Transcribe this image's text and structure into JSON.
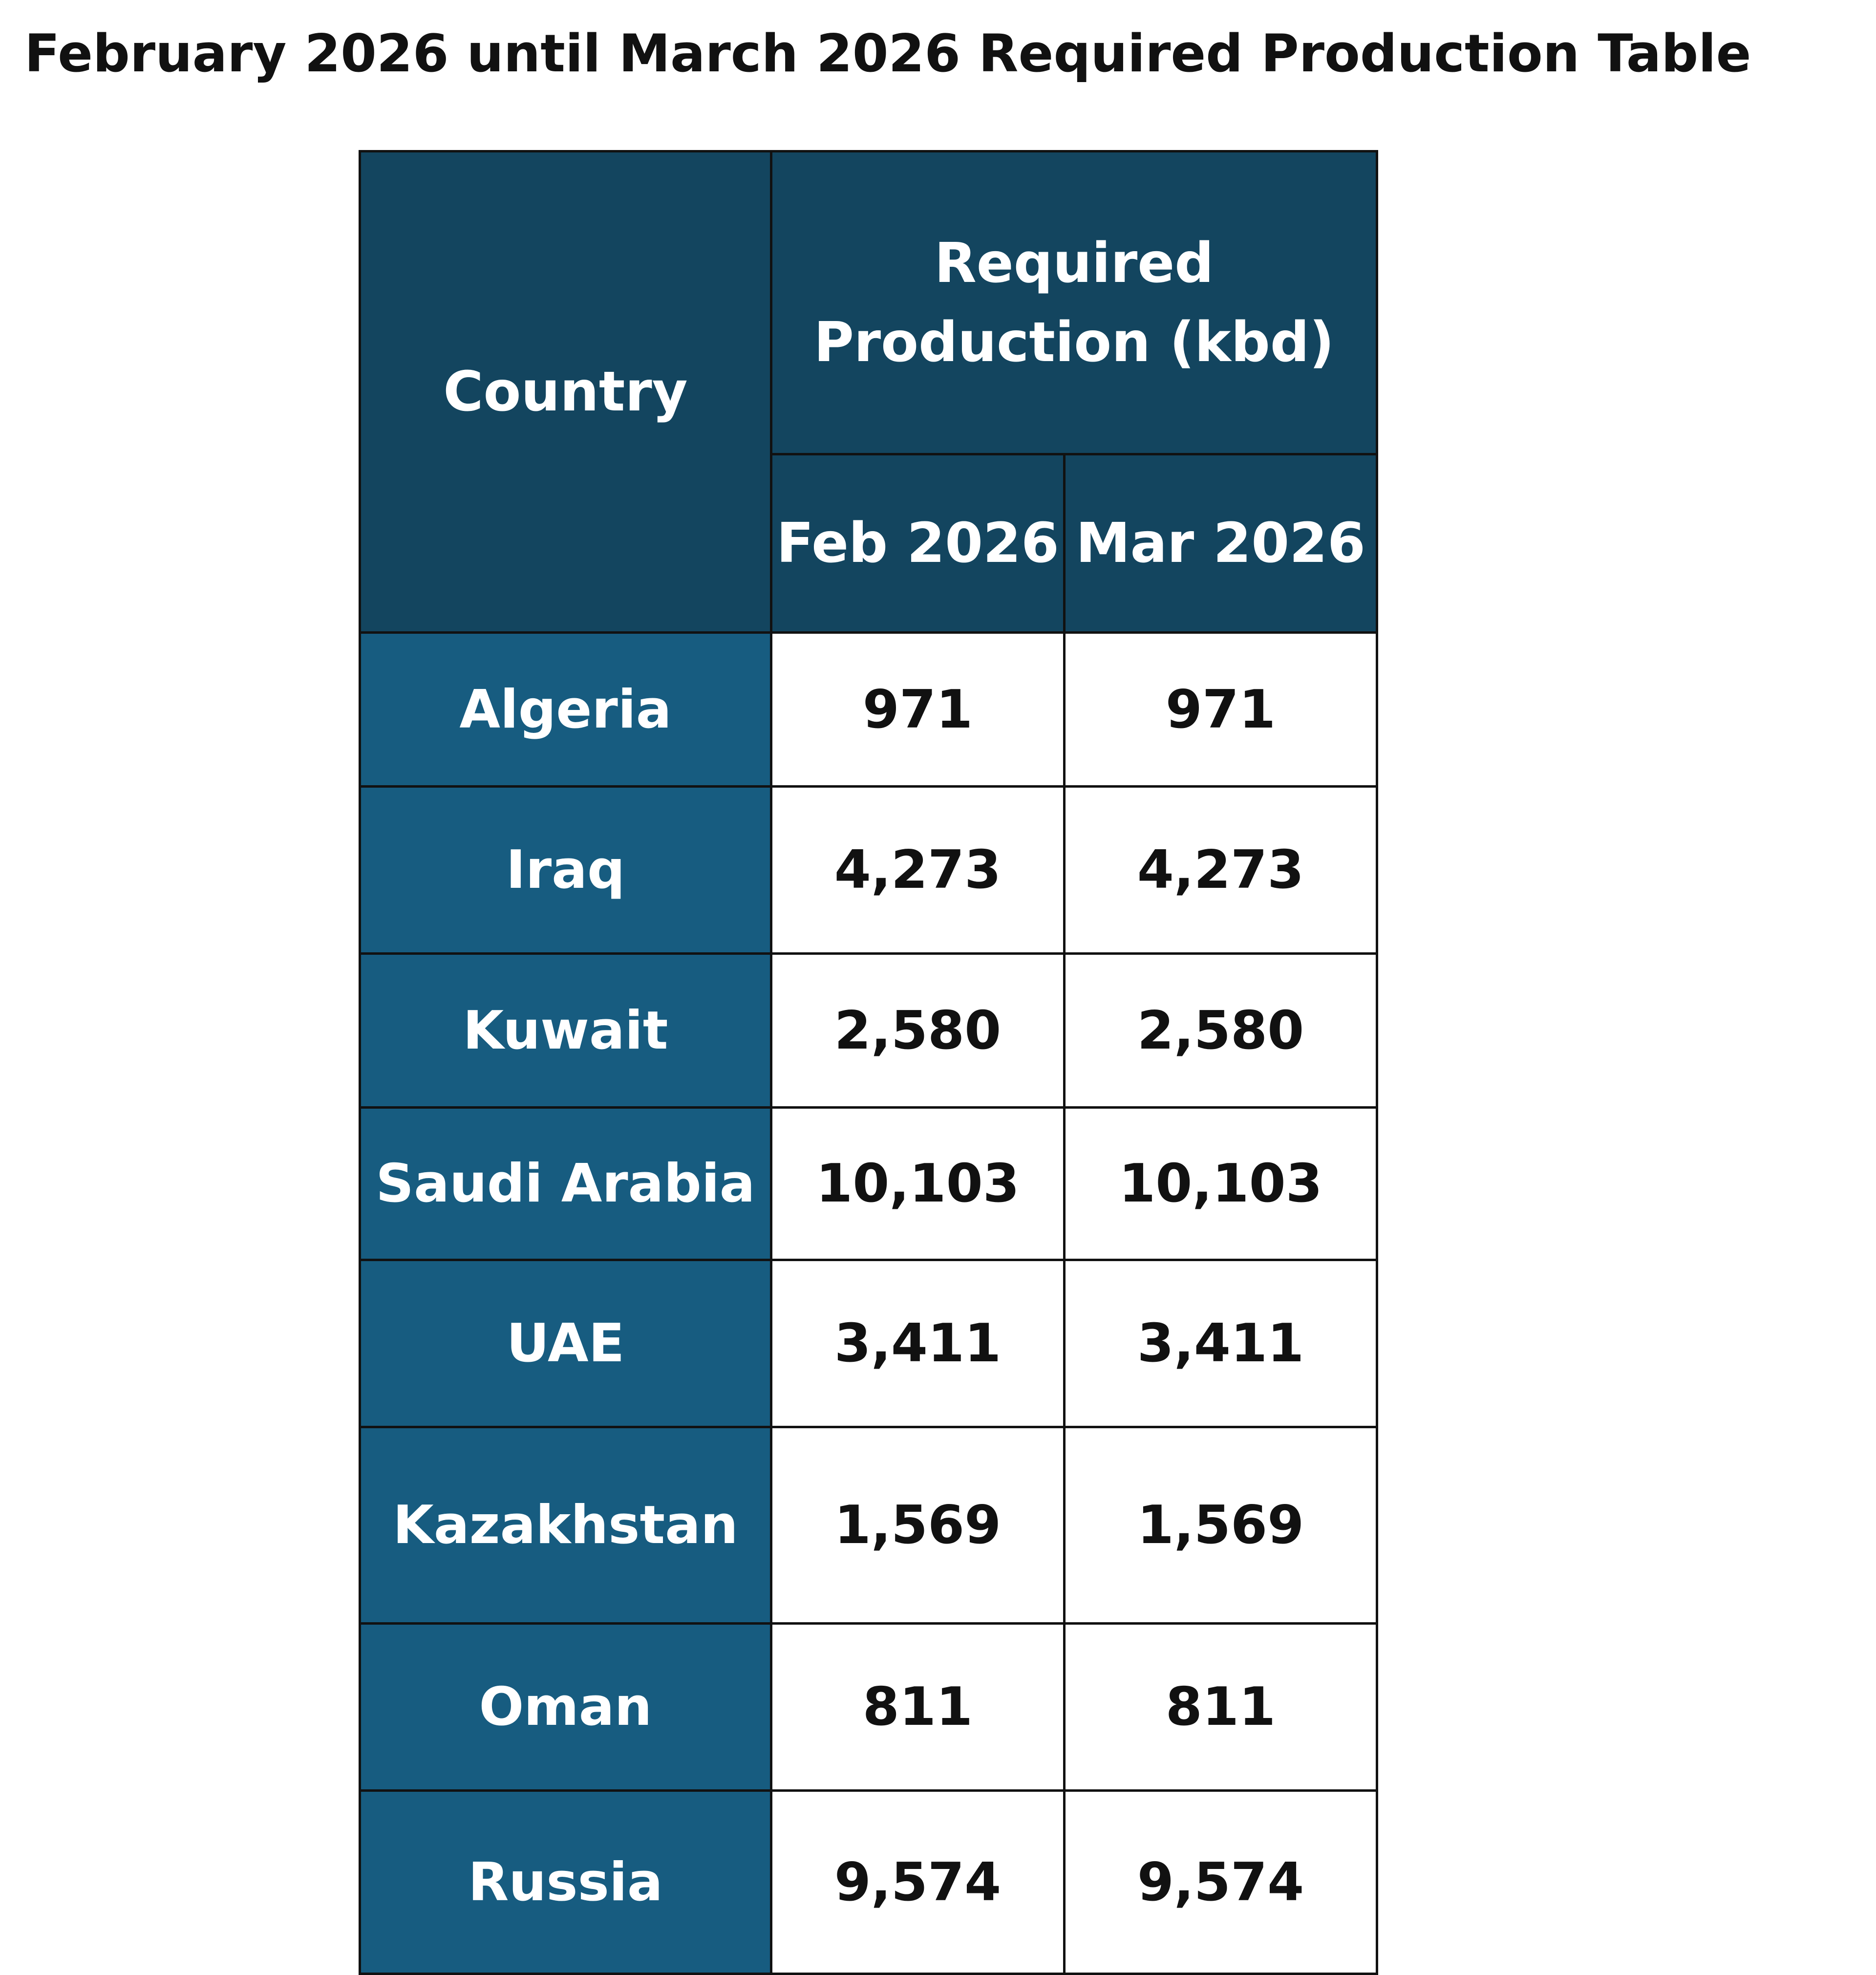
{
  "title": "February 2026 until March 2026 Required Production Table",
  "table": {
    "header": {
      "country": "Country",
      "group": "Required Production (kbd)",
      "months": [
        "Feb 2026",
        "Mar 2026"
      ]
    },
    "rows": [
      {
        "country": "Algeria",
        "values": [
          "971",
          "971"
        ]
      },
      {
        "country": "Iraq",
        "values": [
          "4,273",
          "4,273"
        ]
      },
      {
        "country": "Kuwait",
        "values": [
          "2,580",
          "2,580"
        ]
      },
      {
        "country": "Saudi Arabia",
        "values": [
          "10,103",
          "10,103"
        ]
      },
      {
        "country": "UAE",
        "values": [
          "3,411",
          "3,411"
        ]
      },
      {
        "country": "Kazakhstan",
        "values": [
          "1,569",
          "1,569"
        ]
      },
      {
        "country": "Oman",
        "values": [
          "811",
          "811"
        ]
      },
      {
        "country": "Russia",
        "values": [
          "9,574",
          "9,574"
        ]
      }
    ]
  },
  "colors": {
    "header_bg": "#13455f",
    "row_header_bg": "#175c80",
    "cell_bg": "#ffffff",
    "border": "#111111"
  }
}
